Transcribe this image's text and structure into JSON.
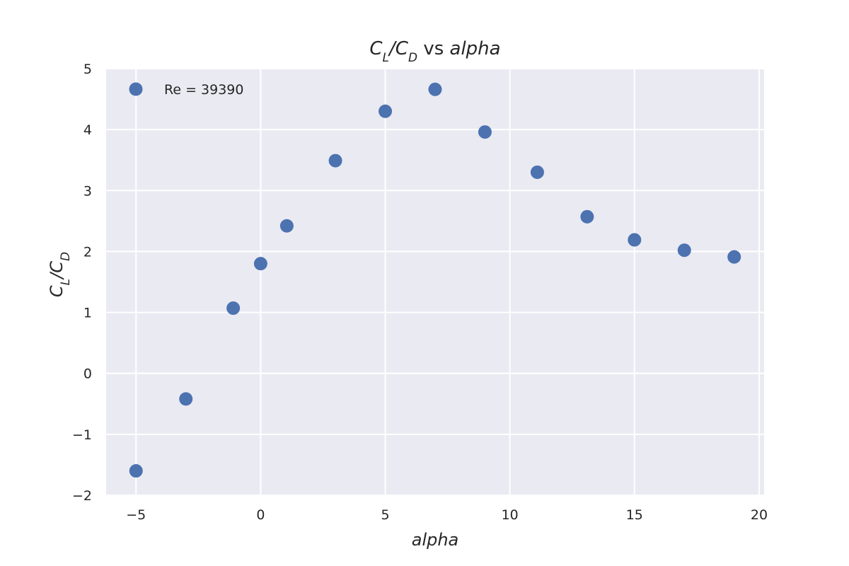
{
  "chart_data": {
    "type": "scatter",
    "title": {
      "numerator": "C",
      "numerator_sub": "L",
      "denominator": "C",
      "denominator_sub": "D",
      "vs": "vs",
      "variable": "alpha"
    },
    "xlabel": "alpha",
    "ylabel": {
      "numerator": "C",
      "numerator_sub": "L",
      "denominator": "C",
      "denominator_sub": "D"
    },
    "xlim": [
      -6.2,
      20.2
    ],
    "ylim": [
      -2,
      5
    ],
    "xticks": [
      -5,
      0,
      5,
      10,
      15,
      20
    ],
    "xtick_labels": [
      "−5",
      "0",
      "5",
      "10",
      "15",
      "20"
    ],
    "yticks": [
      -2,
      -1,
      0,
      1,
      2,
      3,
      4,
      5
    ],
    "ytick_labels": [
      "−2",
      "−1",
      "0",
      "1",
      "2",
      "3",
      "4",
      "5"
    ],
    "grid": true,
    "legend_position": "top-left",
    "background_color": "#eaeaf2",
    "grid_color": "#ffffff",
    "series": [
      {
        "name": "Re = 39390",
        "color": "#4c72b0",
        "x": [
          -5,
          -3,
          -1.1,
          0,
          1.05,
          3,
          5,
          7,
          9,
          11.1,
          13.1,
          15,
          17,
          19
        ],
        "y": [
          -1.6,
          -0.42,
          1.07,
          1.8,
          2.42,
          3.49,
          4.3,
          4.66,
          3.96,
          3.3,
          2.57,
          2.19,
          2.02,
          1.91
        ]
      }
    ]
  }
}
